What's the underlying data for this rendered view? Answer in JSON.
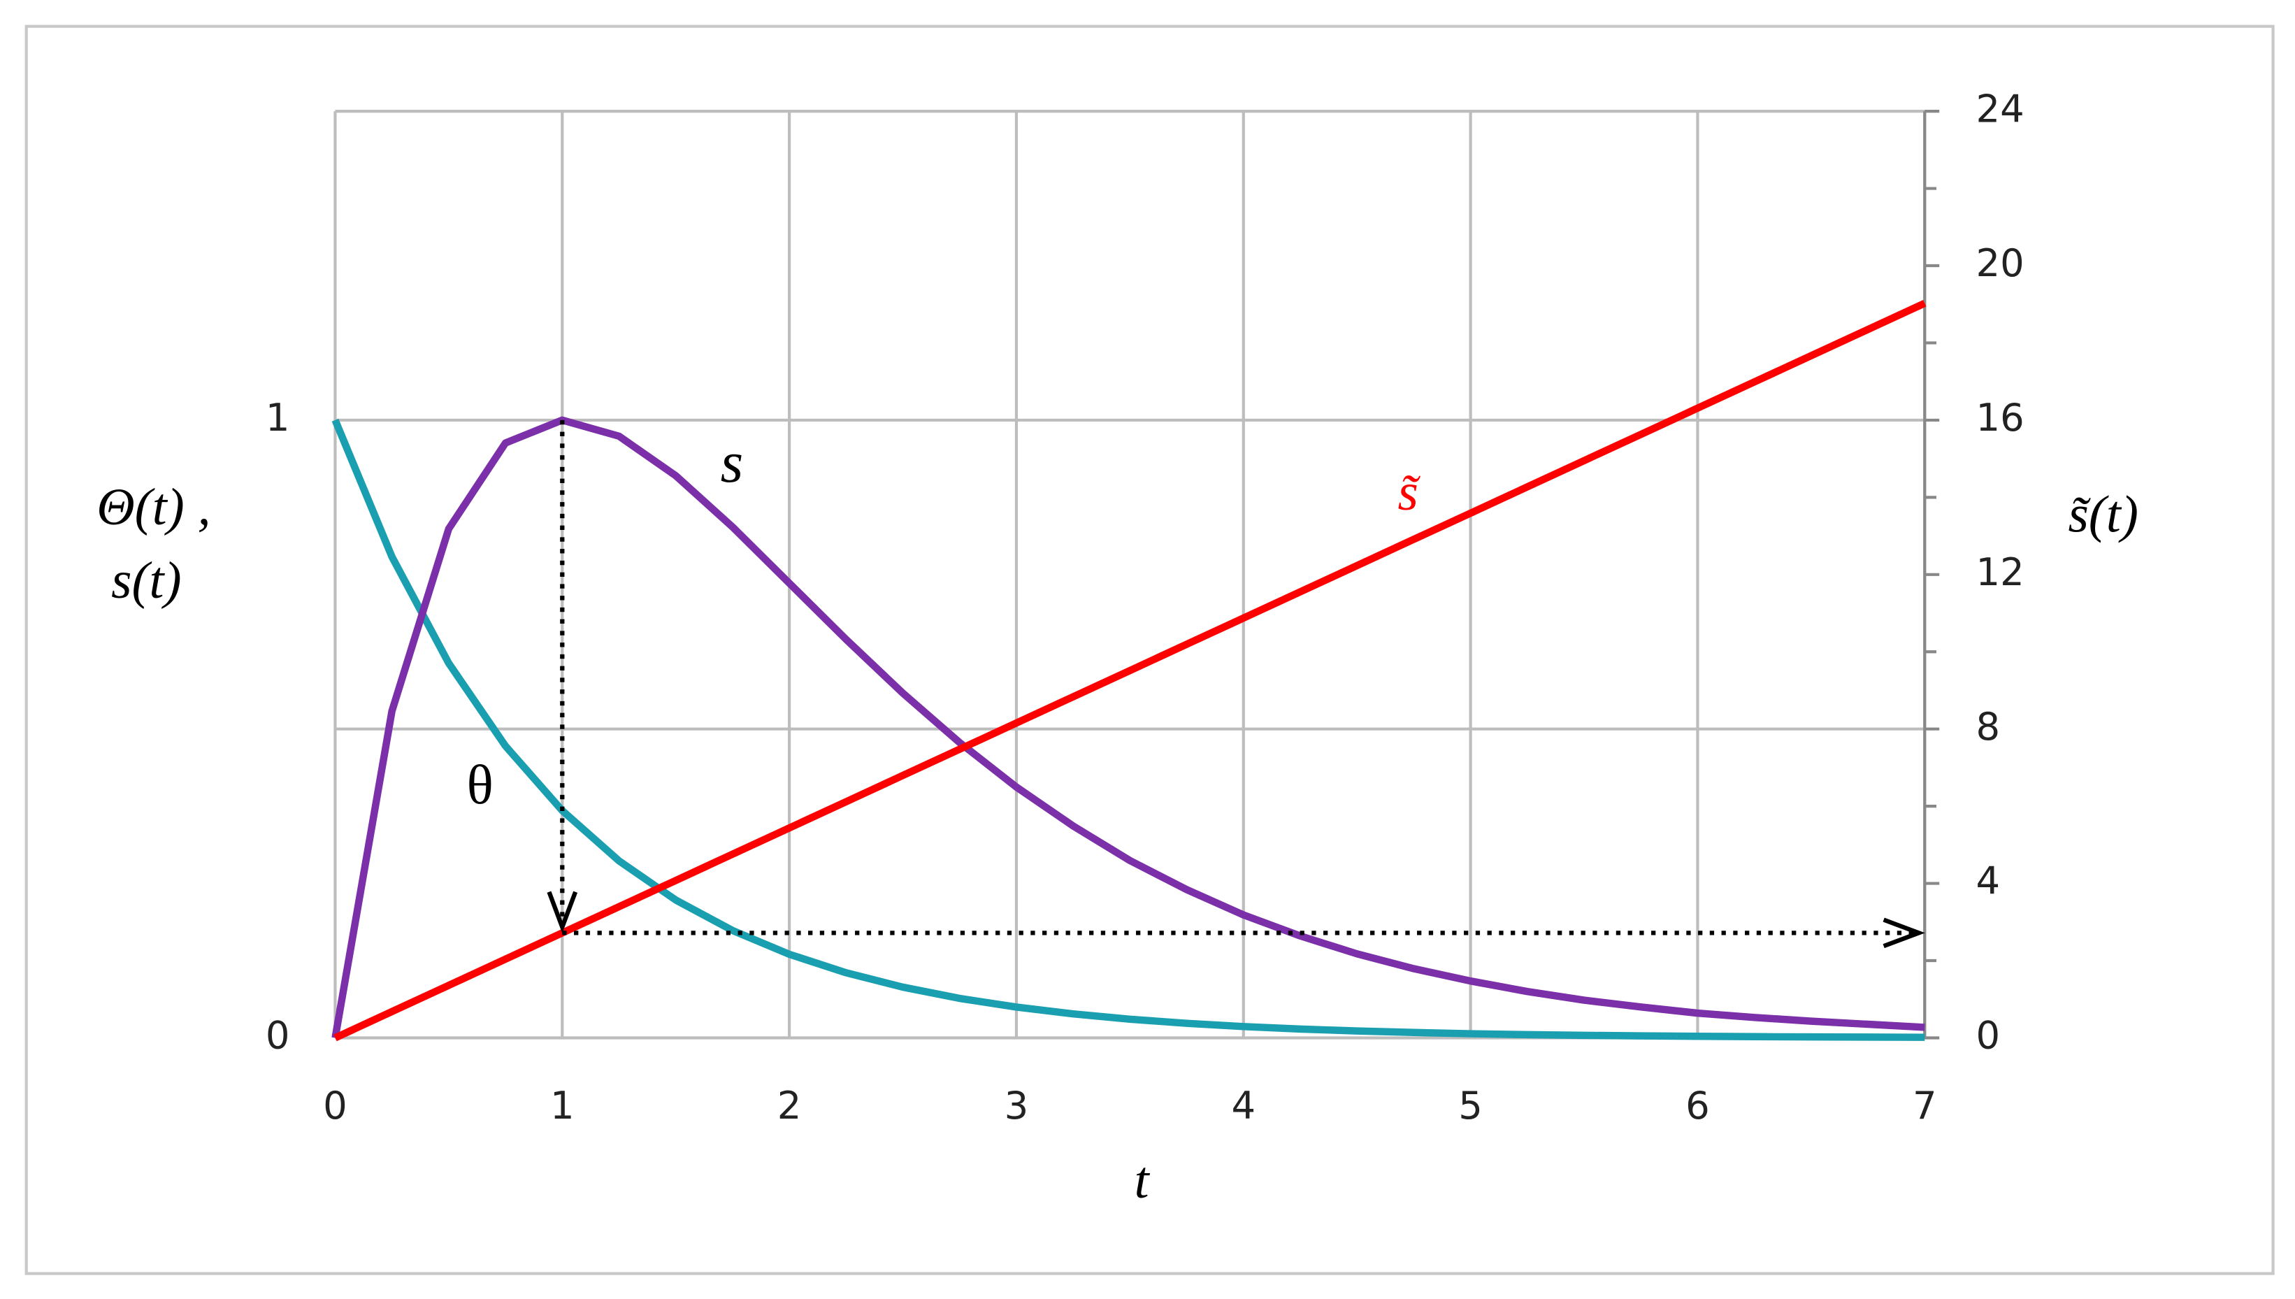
{
  "chart_data": {
    "type": "line",
    "x": [
      0,
      0.25,
      0.5,
      0.75,
      1,
      1.25,
      1.5,
      1.75,
      2,
      2.25,
      2.5,
      2.75,
      3,
      3.25,
      3.5,
      3.75,
      4,
      4.25,
      4.5,
      4.75,
      5,
      5.25,
      5.5,
      5.75,
      6,
      6.25,
      6.5,
      6.75,
      7
    ],
    "series": [
      {
        "name": "θ",
        "color": "#1a9fb0",
        "values": [
          1,
          0.7788,
          0.6065,
          0.4724,
          0.3679,
          0.2865,
          0.2231,
          0.1738,
          0.1353,
          0.1054,
          0.0821,
          0.0639,
          0.0498,
          0.0388,
          0.0302,
          0.0235,
          0.0183,
          0.0143,
          0.0111,
          0.0087,
          0.0067,
          0.0052,
          0.0041,
          0.0032,
          0.0025,
          0.0019,
          0.0015,
          0.0012,
          0.0009
        ]
      },
      {
        "name": "s",
        "color": "#7b2fa8",
        "values": [
          0,
          0.529,
          0.824,
          0.963,
          1,
          0.974,
          0.91,
          0.827,
          0.736,
          0.645,
          0.558,
          0.478,
          0.406,
          0.343,
          0.287,
          0.24,
          0.199,
          0.165,
          0.136,
          0.112,
          0.092,
          0.075,
          0.061,
          0.05,
          0.04,
          0.033,
          0.027,
          0.022,
          0.017
        ]
      },
      {
        "name": "s̃",
        "color": "#ff0000",
        "axis": "y2",
        "values": [
          0,
          0.68,
          1.359,
          2.039,
          2.718,
          3.398,
          4.077,
          4.757,
          5.437,
          6.116,
          6.796,
          7.475,
          8.155,
          8.835,
          9.514,
          10.194,
          10.873,
          11.553,
          12.232,
          12.912,
          13.591,
          14.271,
          14.951,
          15.63,
          16.31,
          16.989,
          17.669,
          18.348,
          19.028
        ]
      }
    ],
    "xlabel": "t",
    "ylabel": [
      "Θ(t) ,",
      "s(t)"
    ],
    "y2label": "s̃(t)",
    "xlim": [
      0,
      7
    ],
    "xticks": [
      0,
      1,
      2,
      3,
      4,
      5,
      6,
      7
    ],
    "ylim": [
      0,
      1.5
    ],
    "yticks": [
      0,
      1
    ],
    "y2lim": [
      0,
      24
    ],
    "y2ticks": [
      0,
      4,
      8,
      12,
      16,
      20,
      24
    ],
    "y2color": "#ff0000",
    "grid": true
  }
}
